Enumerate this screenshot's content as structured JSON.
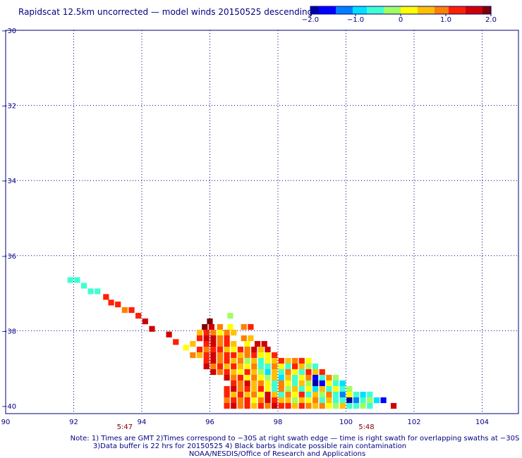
{
  "title": "Rapidscat 12.5km uncorrected — model winds 20150525 descending",
  "colorbar": {
    "tick_labels": [
      "−2.0",
      "−1.0",
      "0",
      "1.0",
      "2.0"
    ],
    "min": -2.0,
    "max": 2.0,
    "colors": [
      "#0000a0",
      "#0000ff",
      "#0080ff",
      "#00e0ff",
      "#40ffd0",
      "#a0ff60",
      "#ffff00",
      "#ffc000",
      "#ff8000",
      "#ff2000",
      "#d00000",
      "#800000"
    ]
  },
  "map": {
    "lon_range": [
      90,
      104.5
    ],
    "lat_range": [
      -40,
      -30
    ],
    "x_ticks": [
      "90",
      "92",
      "94",
      "96",
      "98",
      "100",
      "102",
      "104"
    ],
    "y_ticks": [
      "−30",
      "−32",
      "−34",
      "−36",
      "−38",
      "−40"
    ],
    "gridlines": true,
    "time_labels": [
      {
        "text": "5:47",
        "lon": 93.5
      },
      {
        "text": "5:48",
        "lon": 100.6
      }
    ]
  },
  "notes": [
    "Note: 1) Times are GMT 2)Times correspond to −30S at right swath edge — time is right swath for overlapping swaths at −30S",
    "3)Data buffer is 22 hrs for 20150525 4) Black barbs indicate possible rain contamination",
    "NOAA/NESDIS/Office of Research and Applications"
  ],
  "colors": {
    "text": "#000080",
    "time_label": "#800000",
    "grid": "#000080"
  },
  "chart_data": {
    "type": "heatmap",
    "title": "Rapidscat 12.5km uncorrected — model winds 20150525 descending",
    "xlim": [
      90,
      104.5
    ],
    "ylim": [
      -40,
      -30
    ],
    "value_range": [
      -2.0,
      2.0
    ],
    "cell_size_deg": 0.17,
    "cells": [
      [
        91.9,
        -36.65,
        -0.6
      ],
      [
        92.1,
        -36.65,
        -0.5
      ],
      [
        92.3,
        -36.8,
        -0.6
      ],
      [
        92.5,
        -36.95,
        -0.6
      ],
      [
        92.7,
        -36.95,
        -0.5
      ],
      [
        92.95,
        -37.1,
        1.3
      ],
      [
        93.1,
        -37.25,
        1.3
      ],
      [
        93.3,
        -37.3,
        1.2
      ],
      [
        93.5,
        -37.45,
        0.9
      ],
      [
        93.7,
        -37.45,
        1.1
      ],
      [
        93.9,
        -37.6,
        1.3
      ],
      [
        94.1,
        -37.75,
        1.6
      ],
      [
        94.3,
        -37.95,
        1.5
      ],
      [
        94.8,
        -38.1,
        1.6
      ],
      [
        95.0,
        -38.3,
        1.3
      ],
      [
        95.3,
        -38.45,
        0.2
      ],
      [
        95.5,
        -38.65,
        0.8
      ],
      [
        96.0,
        -37.75,
        1.9
      ],
      [
        95.85,
        -37.9,
        2.0
      ],
      [
        96.05,
        -37.9,
        1.6
      ],
      [
        96.3,
        -37.9,
        1.0
      ],
      [
        96.6,
        -37.9,
        0.2
      ],
      [
        96.6,
        -37.6,
        -0.3
      ],
      [
        97.0,
        -37.9,
        1.0
      ],
      [
        97.2,
        -37.9,
        1.2
      ],
      [
        95.7,
        -38.05,
        0.5
      ],
      [
        95.9,
        -38.05,
        1.3
      ],
      [
        96.1,
        -38.05,
        0.8
      ],
      [
        96.3,
        -38.05,
        0.3
      ],
      [
        96.5,
        -38.05,
        0.9
      ],
      [
        96.7,
        -38.05,
        0.5
      ],
      [
        95.7,
        -38.2,
        1.2
      ],
      [
        95.9,
        -38.2,
        1.6
      ],
      [
        96.1,
        -38.2,
        1.8
      ],
      [
        96.3,
        -38.2,
        1.0
      ],
      [
        96.5,
        -38.2,
        1.3
      ],
      [
        97.0,
        -38.2,
        1.0
      ],
      [
        97.2,
        -38.2,
        0.6
      ],
      [
        95.5,
        -38.35,
        0.6
      ],
      [
        95.9,
        -38.35,
        1.2
      ],
      [
        96.1,
        -38.35,
        1.6
      ],
      [
        96.3,
        -38.35,
        0.8
      ],
      [
        96.5,
        -38.35,
        1.1
      ],
      [
        96.7,
        -38.35,
        0.4
      ],
      [
        97.1,
        -38.35,
        0.2
      ],
      [
        97.4,
        -38.35,
        1.7
      ],
      [
        97.6,
        -38.35,
        1.8
      ],
      [
        95.7,
        -38.5,
        1.1
      ],
      [
        95.9,
        -38.5,
        1.0
      ],
      [
        96.1,
        -38.5,
        1.4
      ],
      [
        96.3,
        -38.5,
        1.2
      ],
      [
        96.5,
        -38.5,
        0.6
      ],
      [
        96.7,
        -38.5,
        0.3
      ],
      [
        96.9,
        -38.5,
        1.1
      ],
      [
        97.1,
        -38.5,
        0.9
      ],
      [
        97.3,
        -38.5,
        1.5
      ],
      [
        97.5,
        -38.5,
        0.4
      ],
      [
        97.7,
        -38.5,
        1.6
      ],
      [
        95.7,
        -38.65,
        0.4
      ],
      [
        95.9,
        -38.65,
        1.2
      ],
      [
        96.1,
        -38.65,
        1.7
      ],
      [
        96.3,
        -38.65,
        0.9
      ],
      [
        96.5,
        -38.65,
        1.3
      ],
      [
        96.7,
        -38.65,
        1.1
      ],
      [
        96.9,
        -38.65,
        0.7
      ],
      [
        97.1,
        -38.65,
        1.0
      ],
      [
        97.3,
        -38.65,
        1.2
      ],
      [
        97.5,
        -38.65,
        0.0
      ],
      [
        97.7,
        -38.65,
        0.3
      ],
      [
        97.9,
        -38.65,
        1.4
      ],
      [
        95.9,
        -38.8,
        1.4
      ],
      [
        96.1,
        -38.8,
        1.6
      ],
      [
        96.3,
        -38.8,
        0.8
      ],
      [
        96.5,
        -38.8,
        1.1
      ],
      [
        96.7,
        -38.8,
        0.5
      ],
      [
        96.9,
        -38.8,
        1.0
      ],
      [
        97.1,
        -38.8,
        -0.3
      ],
      [
        97.3,
        -38.8,
        0.7
      ],
      [
        97.5,
        -38.8,
        -0.5
      ],
      [
        97.7,
        -38.8,
        0.2
      ],
      [
        97.9,
        -38.8,
        0.6
      ],
      [
        98.1,
        -38.8,
        1.2
      ],
      [
        98.3,
        -38.8,
        0.4
      ],
      [
        98.5,
        -38.8,
        1.0
      ],
      [
        98.7,
        -38.8,
        1.3
      ],
      [
        98.9,
        -38.8,
        0.3
      ],
      [
        95.9,
        -38.95,
        1.8
      ],
      [
        96.1,
        -38.95,
        1.0
      ],
      [
        96.3,
        -38.95,
        1.3
      ],
      [
        96.5,
        -38.95,
        0.7
      ],
      [
        96.7,
        -38.95,
        1.2
      ],
      [
        96.9,
        -38.95,
        0.4
      ],
      [
        97.1,
        -38.95,
        0.1
      ],
      [
        97.3,
        -38.95,
        1.0
      ],
      [
        97.5,
        -38.95,
        -0.6
      ],
      [
        97.7,
        -38.95,
        -0.4
      ],
      [
        97.9,
        -38.95,
        0.8
      ],
      [
        98.1,
        -38.95,
        0.2
      ],
      [
        98.3,
        -38.95,
        -0.5
      ],
      [
        98.5,
        -38.95,
        1.2
      ],
      [
        98.7,
        -38.95,
        0.5
      ],
      [
        98.9,
        -38.95,
        -0.3
      ],
      [
        99.1,
        -38.95,
        -0.6
      ],
      [
        96.1,
        -39.1,
        1.5
      ],
      [
        96.3,
        -39.1,
        0.9
      ],
      [
        96.5,
        -39.1,
        1.2
      ],
      [
        96.7,
        -39.1,
        0.6
      ],
      [
        96.9,
        -39.1,
        0.3
      ],
      [
        97.1,
        -39.1,
        1.1
      ],
      [
        97.3,
        -39.1,
        0.5
      ],
      [
        97.5,
        -39.1,
        -0.2
      ],
      [
        97.7,
        -39.1,
        -0.8
      ],
      [
        97.9,
        -39.1,
        0.5
      ],
      [
        98.1,
        -39.1,
        -0.5
      ],
      [
        98.3,
        -39.1,
        0.9
      ],
      [
        98.5,
        -39.1,
        0.1
      ],
      [
        98.7,
        -39.1,
        -0.4
      ],
      [
        98.9,
        -39.1,
        1.1
      ],
      [
        99.1,
        -39.1,
        0.5
      ],
      [
        99.3,
        -39.1,
        1.3
      ],
      [
        96.5,
        -39.25,
        1.6
      ],
      [
        96.7,
        -39.25,
        1.0
      ],
      [
        96.9,
        -39.25,
        1.3
      ],
      [
        97.1,
        -39.25,
        0.3
      ],
      [
        97.3,
        -39.25,
        0.9
      ],
      [
        97.5,
        -39.25,
        0.1
      ],
      [
        97.7,
        -39.25,
        -0.3
      ],
      [
        97.9,
        -39.25,
        0.7
      ],
      [
        98.1,
        -39.25,
        -0.9
      ],
      [
        98.3,
        -39.25,
        0.4
      ],
      [
        98.5,
        -39.25,
        -0.6
      ],
      [
        98.7,
        -39.25,
        0.2
      ],
      [
        98.9,
        -39.25,
        0.8
      ],
      [
        99.1,
        -39.25,
        -1.8
      ],
      [
        99.3,
        -39.25,
        -0.4
      ],
      [
        99.5,
        -39.25,
        0.9
      ],
      [
        99.7,
        -39.25,
        -0.3
      ],
      [
        96.7,
        -39.4,
        1.2
      ],
      [
        96.9,
        -39.4,
        0.8
      ],
      [
        97.1,
        -39.4,
        1.5
      ],
      [
        97.3,
        -39.4,
        0.5
      ],
      [
        97.5,
        -39.4,
        1.0
      ],
      [
        97.7,
        -39.4,
        0.3
      ],
      [
        97.9,
        -39.4,
        -0.4
      ],
      [
        98.1,
        -39.4,
        0.9
      ],
      [
        98.3,
        -39.4,
        0.2
      ],
      [
        98.5,
        -39.4,
        -0.7
      ],
      [
        98.7,
        -39.4,
        0.6
      ],
      [
        98.9,
        -39.4,
        -0.2
      ],
      [
        99.1,
        -39.4,
        -2.0
      ],
      [
        99.3,
        -39.4,
        -1.8
      ],
      [
        99.5,
        -39.4,
        0.3
      ],
      [
        99.7,
        -39.4,
        -0.5
      ],
      [
        99.9,
        -39.4,
        -0.8
      ],
      [
        96.5,
        -39.55,
        1.3
      ],
      [
        96.7,
        -39.55,
        1.6
      ],
      [
        96.9,
        -39.55,
        0.9
      ],
      [
        97.1,
        -39.55,
        1.2
      ],
      [
        97.3,
        -39.55,
        0.6
      ],
      [
        97.5,
        -39.55,
        1.4
      ],
      [
        97.7,
        -39.55,
        0.2
      ],
      [
        97.9,
        -39.55,
        -0.5
      ],
      [
        98.1,
        -39.55,
        0.8
      ],
      [
        98.3,
        -39.55,
        -0.3
      ],
      [
        98.5,
        -39.55,
        0.5
      ],
      [
        98.7,
        -39.55,
        -0.6
      ],
      [
        98.9,
        -39.55,
        0.3
      ],
      [
        99.1,
        -39.55,
        -0.8
      ],
      [
        99.3,
        -39.55,
        0.7
      ],
      [
        99.5,
        -39.55,
        -0.4
      ],
      [
        99.7,
        -39.55,
        0.2
      ],
      [
        99.9,
        -39.55,
        -0.6
      ],
      [
        100.1,
        -39.55,
        -0.3
      ],
      [
        96.5,
        -39.7,
        1.1
      ],
      [
        96.7,
        -39.7,
        0.7
      ],
      [
        96.9,
        -39.7,
        1.3
      ],
      [
        97.1,
        -39.7,
        0.4
      ],
      [
        97.3,
        -39.7,
        1.0
      ],
      [
        97.5,
        -39.7,
        0.2
      ],
      [
        97.7,
        -39.7,
        1.7
      ],
      [
        97.9,
        -39.7,
        0.6
      ],
      [
        98.1,
        -39.7,
        -0.5
      ],
      [
        98.3,
        -39.7,
        0.9
      ],
      [
        98.5,
        -39.7,
        0.1
      ],
      [
        98.7,
        -39.7,
        1.1
      ],
      [
        98.9,
        -39.7,
        -0.4
      ],
      [
        99.1,
        -39.7,
        0.5
      ],
      [
        99.3,
        -39.7,
        -0.2
      ],
      [
        99.5,
        -39.7,
        0.8
      ],
      [
        99.7,
        -39.7,
        -0.6
      ],
      [
        99.9,
        -39.7,
        -1.3
      ],
      [
        100.1,
        -39.7,
        0.2
      ],
      [
        100.3,
        -39.7,
        -0.5
      ],
      [
        100.5,
        -39.7,
        -0.8
      ],
      [
        100.7,
        -39.7,
        -0.5
      ],
      [
        96.5,
        -39.85,
        1.0
      ],
      [
        96.7,
        -39.85,
        1.4
      ],
      [
        96.9,
        -39.85,
        0.8
      ],
      [
        97.1,
        -39.85,
        1.2
      ],
      [
        97.3,
        -39.85,
        0.3
      ],
      [
        97.5,
        -39.85,
        0.9
      ],
      [
        97.7,
        -39.85,
        1.5
      ],
      [
        97.9,
        -39.85,
        1.2
      ],
      [
        98.1,
        -39.85,
        0.4
      ],
      [
        98.3,
        -39.85,
        0.7
      ],
      [
        98.5,
        -39.85,
        -0.3
      ],
      [
        98.7,
        -39.85,
        0.6
      ],
      [
        98.9,
        -39.85,
        0.2
      ],
      [
        99.1,
        -39.85,
        0.9
      ],
      [
        99.3,
        -39.85,
        -0.5
      ],
      [
        99.5,
        -39.85,
        0.4
      ],
      [
        99.7,
        -39.85,
        -0.4
      ],
      [
        99.9,
        -39.85,
        -0.7
      ],
      [
        100.1,
        -39.85,
        -1.9
      ],
      [
        100.3,
        -39.85,
        -1.4
      ],
      [
        100.5,
        -39.85,
        -0.6
      ],
      [
        100.7,
        -39.85,
        -0.3
      ],
      [
        100.9,
        -39.85,
        -0.8
      ],
      [
        101.1,
        -39.85,
        -1.5
      ],
      [
        96.5,
        -40.0,
        1.2
      ],
      [
        96.7,
        -40.0,
        1.5
      ],
      [
        96.9,
        -40.0,
        1.0
      ],
      [
        97.1,
        -40.0,
        1.3
      ],
      [
        97.3,
        -40.0,
        0.6
      ],
      [
        97.5,
        -40.0,
        1.1
      ],
      [
        97.7,
        -40.0,
        0.8
      ],
      [
        97.9,
        -40.0,
        1.5
      ],
      [
        98.1,
        -40.0,
        1.2
      ],
      [
        98.3,
        -40.0,
        1.4
      ],
      [
        98.5,
        -40.0,
        0.7
      ],
      [
        98.7,
        -40.0,
        1.1
      ],
      [
        98.9,
        -40.0,
        0.9
      ],
      [
        99.1,
        -40.0,
        0.4
      ],
      [
        99.3,
        -40.0,
        1.0
      ],
      [
        99.5,
        -40.0,
        0.3
      ],
      [
        99.7,
        -40.0,
        -0.2
      ],
      [
        99.9,
        -40.0,
        0.5
      ],
      [
        100.1,
        -40.0,
        -0.4
      ],
      [
        100.3,
        -40.0,
        -0.6
      ],
      [
        100.5,
        -40.0,
        -0.3
      ],
      [
        100.7,
        -40.0,
        -0.6
      ],
      [
        101.4,
        -40.0,
        1.7
      ]
    ]
  }
}
